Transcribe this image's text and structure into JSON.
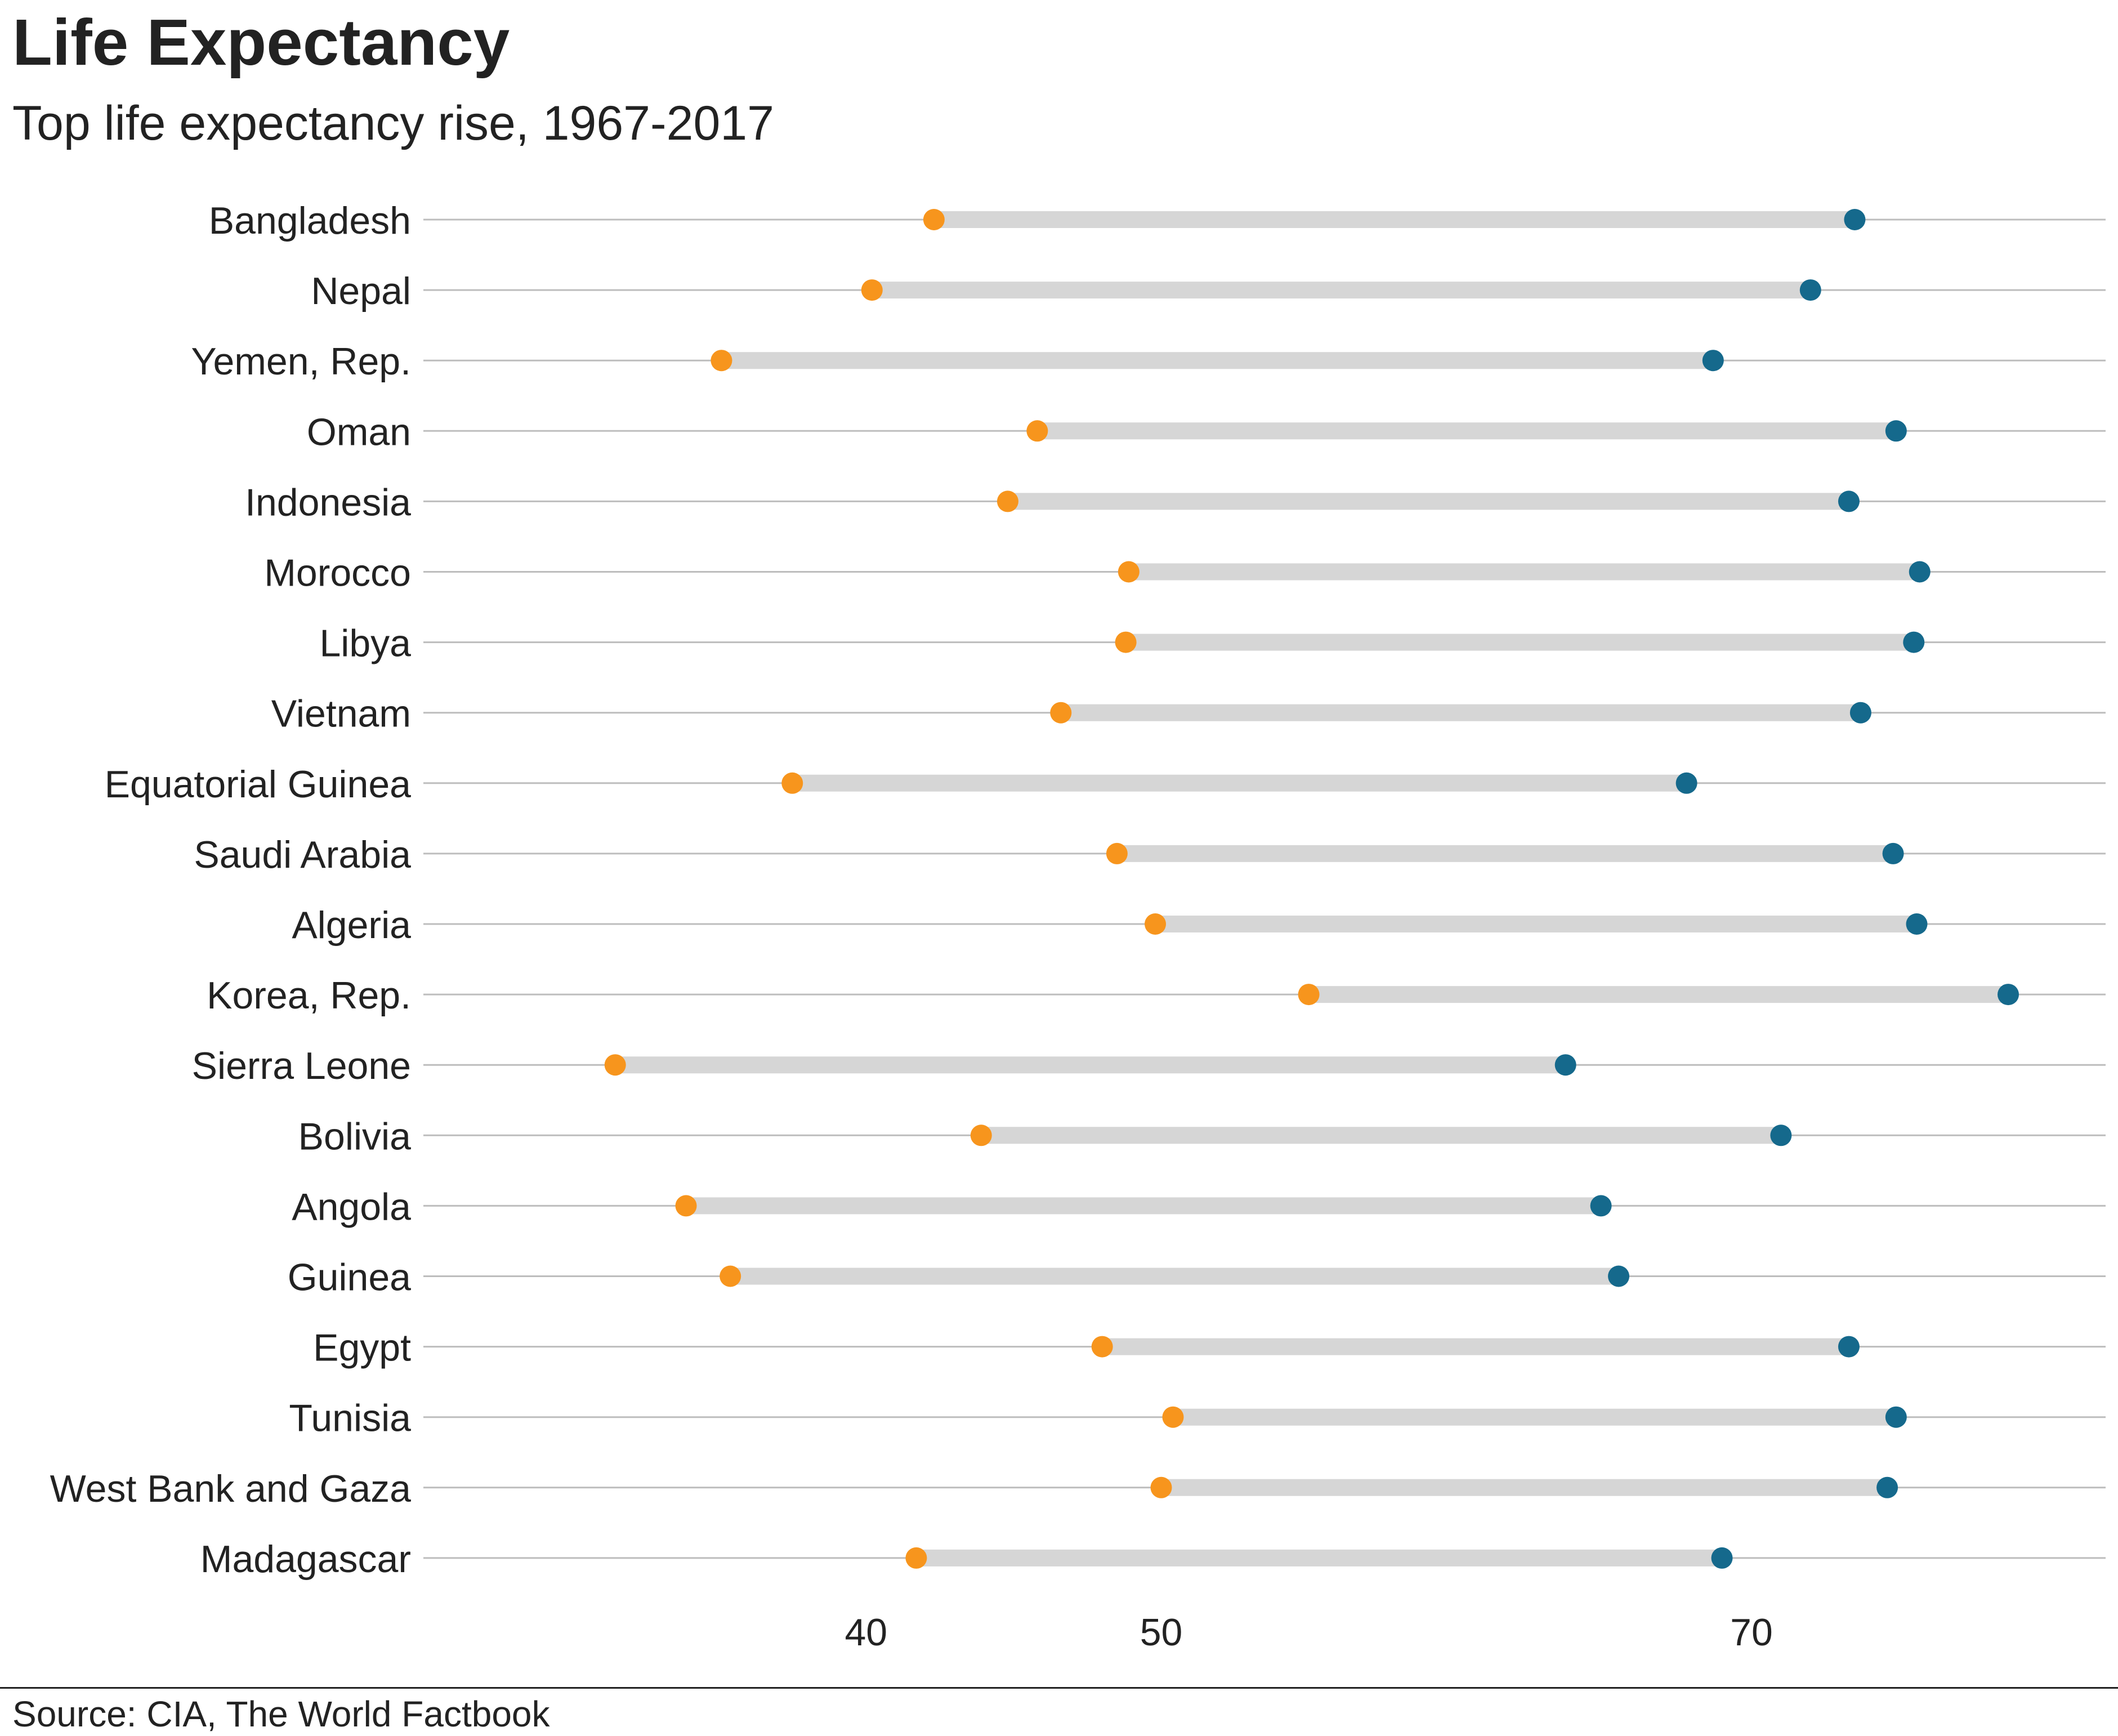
{
  "title": "Life Expectancy",
  "subtitle": "Top life expectancy rise, 1967-2017",
  "source": "Source: CIA, The World Factbook",
  "colors": {
    "start_point": "#F7951D",
    "end_point": "#15698C",
    "range_bar": "#D6D6D6",
    "row_line": "#BDBDBD",
    "text": "#222222"
  },
  "chart_data": {
    "type": "dumbbell",
    "title": "Life Expectancy",
    "subtitle": "Top life expectancy rise, 1967-2017",
    "xlim": [
      25,
      82
    ],
    "x_ticks": [
      40,
      50,
      70
    ],
    "grid": "horizontal row lines",
    "categories": [
      "Bangladesh",
      "Nepal",
      "Yemen, Rep.",
      "Oman",
      "Indonesia",
      "Morocco",
      "Libya",
      "Vietnam",
      "Equatorial Guinea",
      "Saudi Arabia",
      "Algeria",
      "Korea, Rep.",
      "Sierra Leone",
      "Bolivia",
      "Angola",
      "Guinea",
      "Egypt",
      "Tunisia",
      "West Bank and Gaza",
      "Madagascar"
    ],
    "series": [
      {
        "values": [
          42.3,
          40.2,
          35.1,
          45.8,
          44.8,
          48.9,
          48.8,
          46.6,
          37.5,
          48.5,
          49.8,
          55.0,
          31.5,
          43.9,
          33.9,
          35.4,
          48.0,
          50.4,
          50.0,
          41.7
        ]
      },
      {
        "values": [
          73.5,
          72.0,
          68.7,
          74.9,
          73.3,
          75.7,
          75.5,
          73.7,
          67.8,
          74.8,
          75.6,
          78.7,
          63.7,
          71.0,
          64.9,
          65.5,
          73.3,
          74.9,
          74.6,
          69.0
        ]
      }
    ]
  }
}
